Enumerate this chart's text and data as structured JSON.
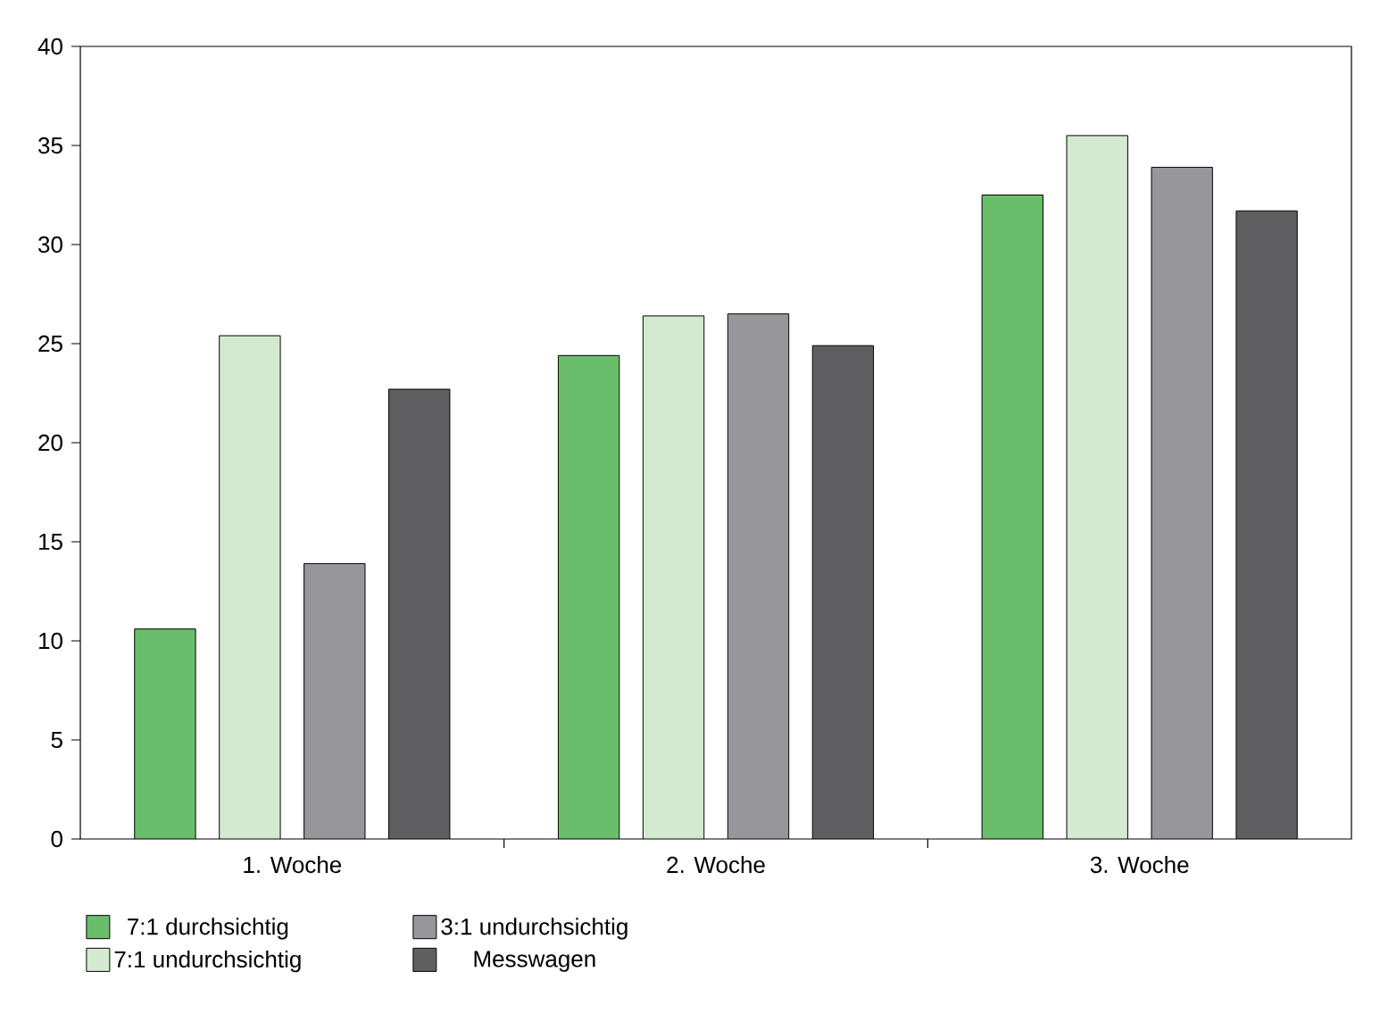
{
  "chart_data": {
    "type": "bar",
    "categories": [
      "1. Woche",
      "2. Woche",
      "3. Woche"
    ],
    "series": [
      {
        "name": "7:1 durchsichtig",
        "color": "#6abd6a",
        "values": [
          10.6,
          24.4,
          32.5
        ]
      },
      {
        "name": "7:1 undurchsichtig",
        "color": "#d4ead0",
        "values": [
          25.4,
          26.4,
          35.5
        ]
      },
      {
        "name": "3:1 undurchsichtig",
        "color": "#96969b",
        "values": [
          13.9,
          26.5,
          33.9
        ]
      },
      {
        "name": "Messwagen",
        "color": "#5f5f62",
        "values": [
          22.7,
          24.9,
          31.7
        ]
      }
    ],
    "ylim": [
      0,
      40
    ],
    "yticks": [
      0,
      5,
      10,
      15,
      20,
      25,
      30,
      35,
      40
    ],
    "grid": false,
    "legend": "bottom left"
  }
}
